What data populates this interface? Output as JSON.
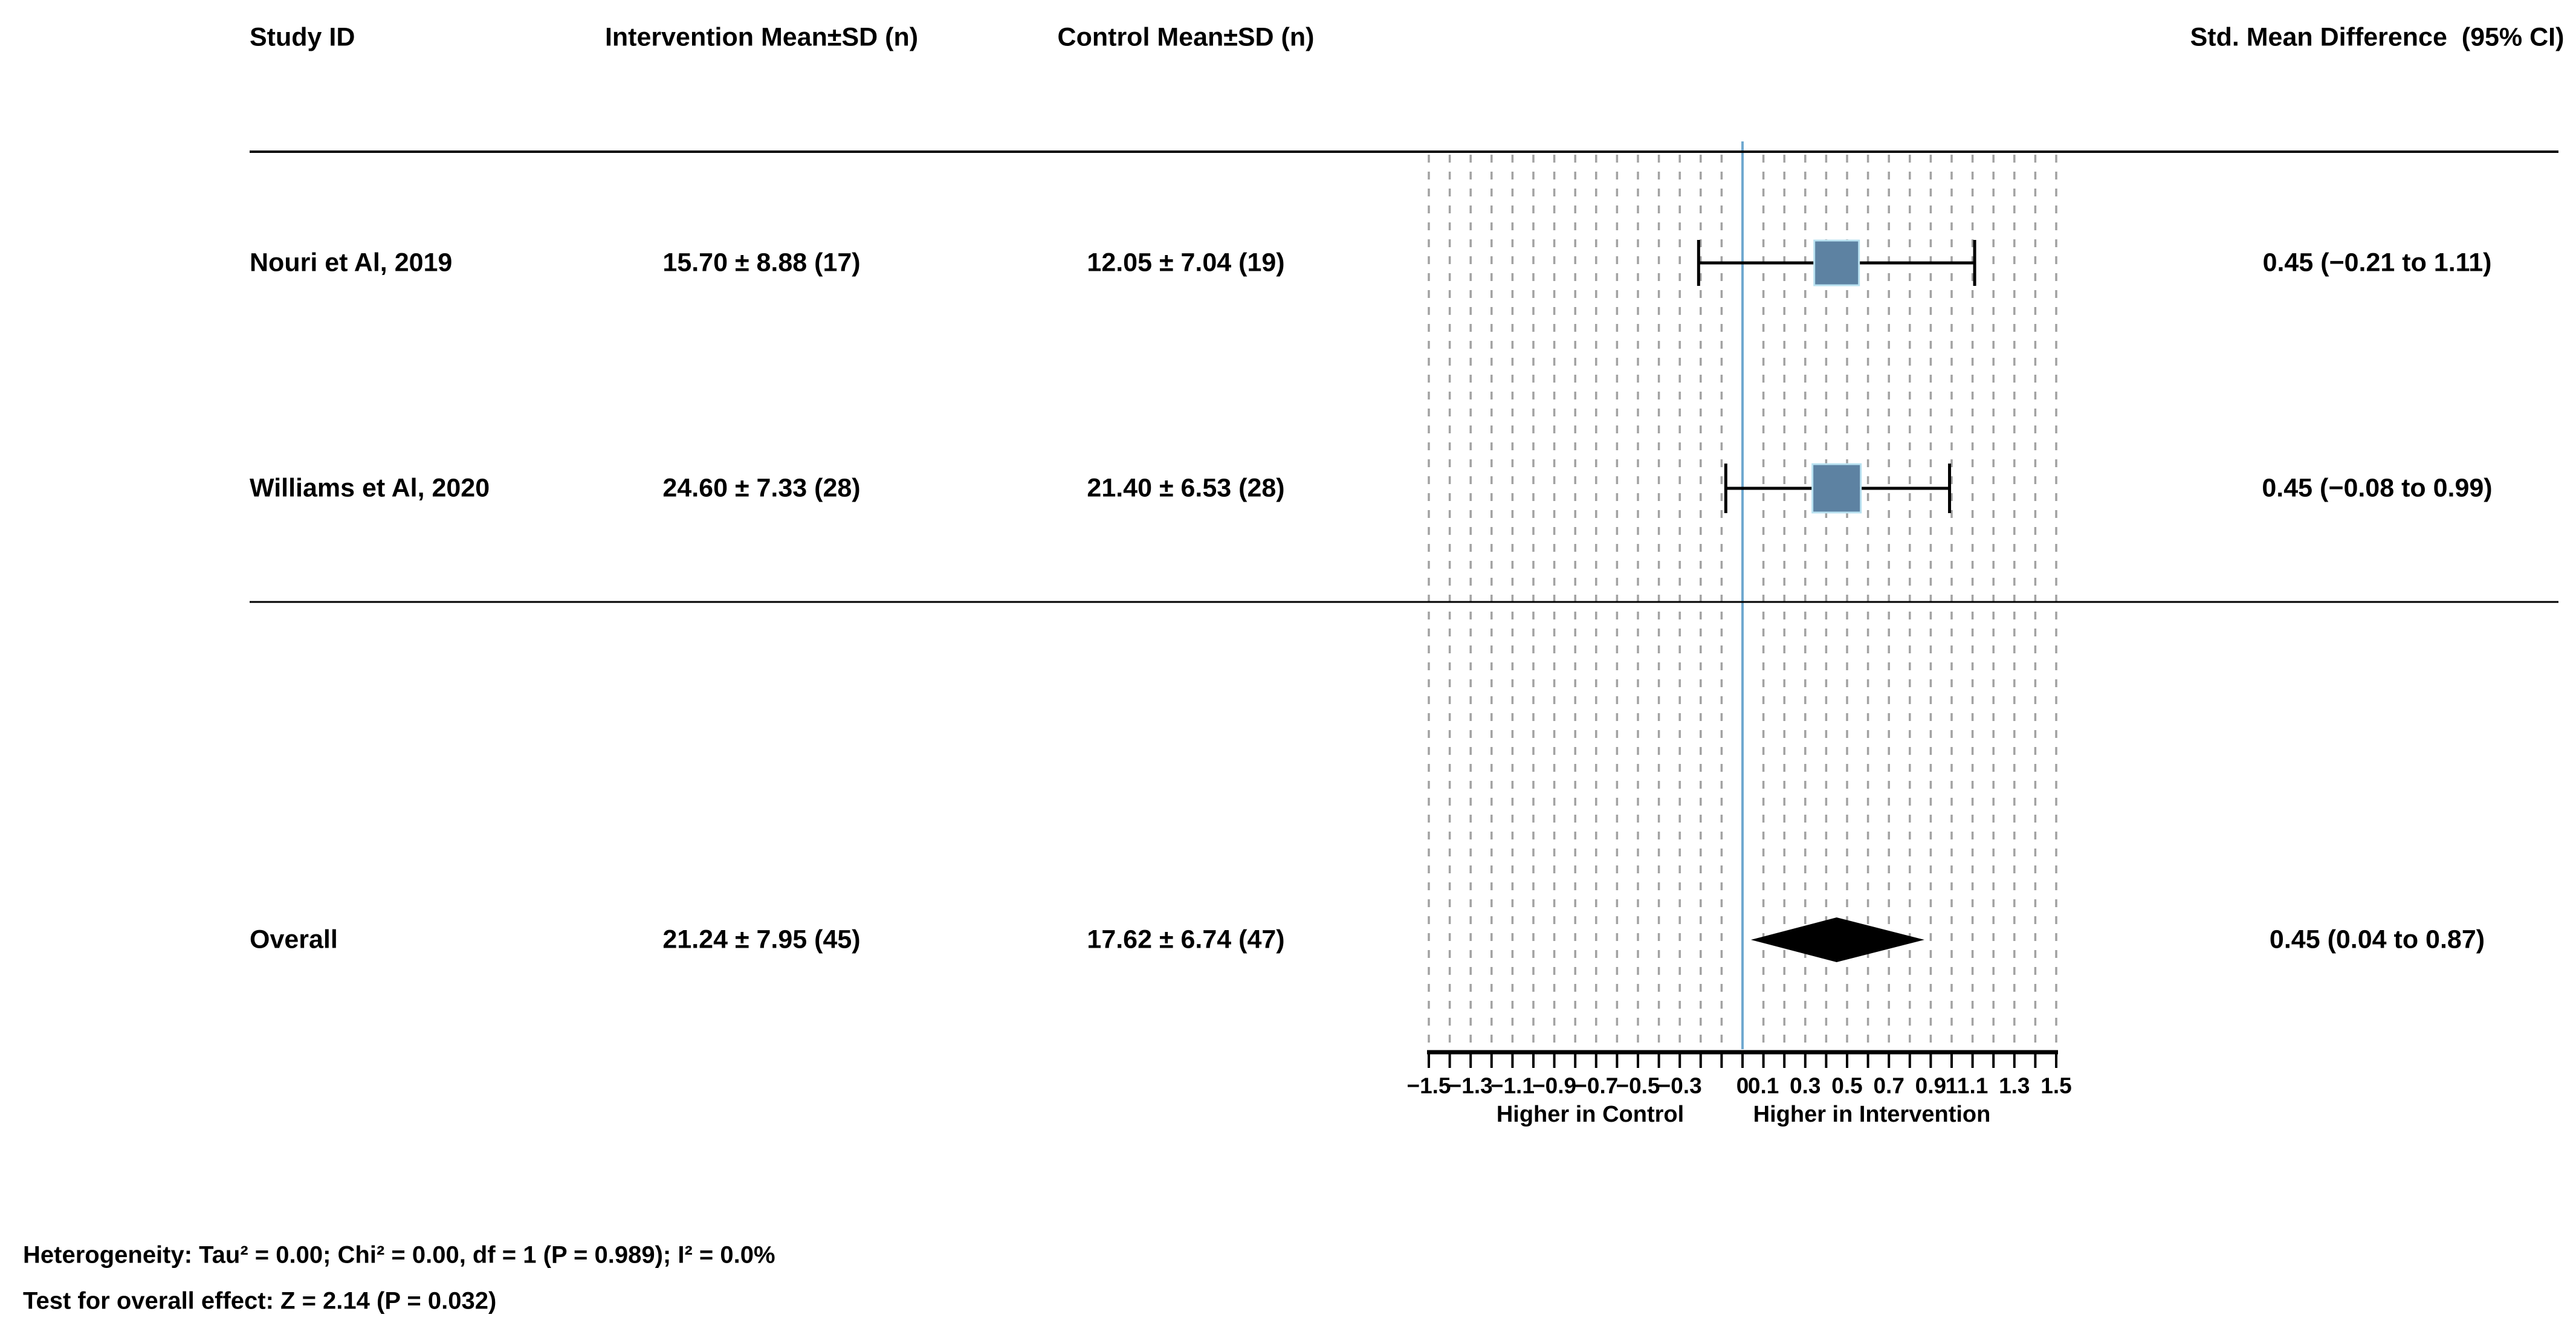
{
  "table": {
    "headers": {
      "study": "Study ID",
      "intervention": "Intervention Mean±SD (n)",
      "control": "Control Mean±SD (n)",
      "smd": "Std. Mean Difference  (95% CI)"
    },
    "rows": [
      {
        "study": "Nouri et Al, 2019",
        "intervention": "15.70 ± 8.88 (17)",
        "control": "12.05 ± 7.04 (19)",
        "smd": "0.45 (−0.21 to 1.11)"
      },
      {
        "study": "Williams et Al, 2020",
        "intervention": "24.60 ± 7.33 (28)",
        "control": "21.40 ± 6.53 (28)",
        "smd": "0.45 (−0.08 to 0.99)"
      },
      {
        "study": "Overall",
        "intervention": "21.24 ± 7.95 (45)",
        "control": "17.62 ± 6.74 (47)",
        "smd": "0.45 (0.04 to 0.87)"
      }
    ]
  },
  "footnotes": {
    "heterogeneity": "Heterogeneity: Tau² = 0.00; Chi² = 0.00, df = 1 (P = 0.989); I² = 0.0%",
    "overall_effect": "Test for overall effect: Z = 2.14 (P = 0.032)"
  },
  "chart_data": {
    "type": "forest",
    "effect_measure": "Std. Mean Difference",
    "xlim": [
      -1.5,
      1.5
    ],
    "minor_tick_step": 0.1,
    "zero_line": 0,
    "grid": true,
    "tick_labels": [
      {
        "v": -1.5,
        "t": "−1.5"
      },
      {
        "v": -1.3,
        "t": "−1.3"
      },
      {
        "v": -1.1,
        "t": "−1.1"
      },
      {
        "v": -0.9,
        "t": "−0.9"
      },
      {
        "v": -0.7,
        "t": "−0.7"
      },
      {
        "v": -0.5,
        "t": "−0.5"
      },
      {
        "v": -0.3,
        "t": "−0.3"
      },
      {
        "v": 0,
        "t": "0"
      },
      {
        "v": 0.1,
        "t": "0.1"
      },
      {
        "v": 0.3,
        "t": "0.3"
      },
      {
        "v": 0.5,
        "t": "0.5"
      },
      {
        "v": 0.7,
        "t": "0.7"
      },
      {
        "v": 0.9,
        "t": "0.9"
      },
      {
        "v": 1,
        "t": "1"
      },
      {
        "v": 1.1,
        "t": "1.1"
      },
      {
        "v": 1.3,
        "t": "1.3"
      },
      {
        "v": 1.5,
        "t": "1.5"
      }
    ],
    "x_axis_left_label": "Higher in Control",
    "x_axis_right_label": "Higher in Intervention",
    "studies": [
      {
        "name": "Nouri et Al, 2019",
        "estimate": 0.45,
        "ci_low": -0.21,
        "ci_high": 1.11,
        "marker_px": 74
      },
      {
        "name": "Williams et Al, 2020",
        "estimate": 0.45,
        "ci_low": -0.08,
        "ci_high": 0.99,
        "marker_px": 80
      }
    ],
    "overall": {
      "name": "Overall",
      "estimate": 0.45,
      "ci_low": 0.04,
      "ci_high": 0.87
    },
    "colors": {
      "marker_fill": "#5d82a2",
      "marker_edge": "#b9e2f1",
      "zero_line": "#6fa8cf",
      "gridline": "#a2a2a2",
      "axis": "#000000",
      "ci_line": "#000000",
      "diamond": "#000000",
      "text": "#000000"
    }
  }
}
